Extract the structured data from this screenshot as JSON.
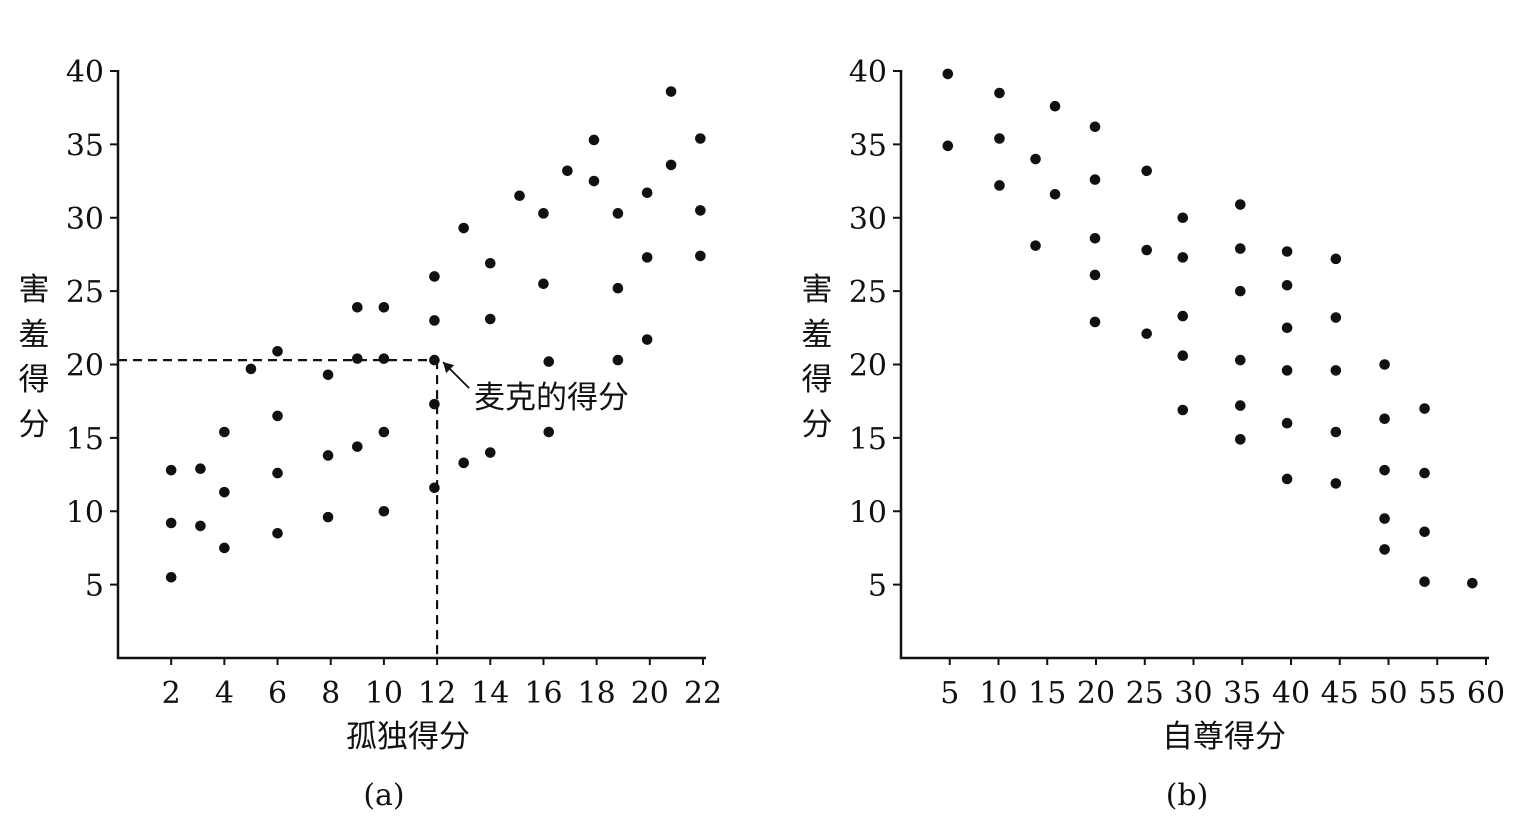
{
  "chart_data": [
    {
      "type": "scatter",
      "panel_label": "(a)",
      "xlabel": "孤独得分",
      "ylabel": "害羞得分",
      "x_ticks": [
        2,
        4,
        6,
        8,
        10,
        12,
        14,
        16,
        18,
        20,
        22
      ],
      "y_ticks": [
        5,
        10,
        15,
        20,
        25,
        30,
        35,
        40
      ],
      "xlim": [
        0,
        22
      ],
      "ylim": [
        0,
        40
      ],
      "grid": false,
      "annotation": {
        "text": "麦克的得分",
        "x": 12,
        "y": 20.3
      },
      "points": [
        {
          "x": 2,
          "y": 12.8
        },
        {
          "x": 2,
          "y": 9.2
        },
        {
          "x": 2,
          "y": 5.5
        },
        {
          "x": 3.1,
          "y": 12.9
        },
        {
          "x": 3.1,
          "y": 9.0
        },
        {
          "x": 4,
          "y": 15.4
        },
        {
          "x": 4,
          "y": 11.3
        },
        {
          "x": 4,
          "y": 7.5
        },
        {
          "x": 5,
          "y": 19.7
        },
        {
          "x": 6,
          "y": 20.9
        },
        {
          "x": 6,
          "y": 16.5
        },
        {
          "x": 6,
          "y": 12.6
        },
        {
          "x": 6,
          "y": 8.5
        },
        {
          "x": 7.9,
          "y": 19.3
        },
        {
          "x": 7.9,
          "y": 13.8
        },
        {
          "x": 7.9,
          "y": 9.6
        },
        {
          "x": 9,
          "y": 23.9
        },
        {
          "x": 9,
          "y": 20.4
        },
        {
          "x": 9,
          "y": 14.4
        },
        {
          "x": 10,
          "y": 23.9
        },
        {
          "x": 10,
          "y": 20.4
        },
        {
          "x": 10,
          "y": 15.4
        },
        {
          "x": 10,
          "y": 10.0
        },
        {
          "x": 11.9,
          "y": 26.0
        },
        {
          "x": 11.9,
          "y": 23.0
        },
        {
          "x": 11.9,
          "y": 20.3
        },
        {
          "x": 11.9,
          "y": 17.3
        },
        {
          "x": 11.9,
          "y": 11.6
        },
        {
          "x": 13,
          "y": 29.3
        },
        {
          "x": 13,
          "y": 13.3
        },
        {
          "x": 14,
          "y": 26.9
        },
        {
          "x": 14,
          "y": 23.1
        },
        {
          "x": 14,
          "y": 14.0
        },
        {
          "x": 15.1,
          "y": 31.5
        },
        {
          "x": 16,
          "y": 30.3
        },
        {
          "x": 16,
          "y": 25.5
        },
        {
          "x": 16.2,
          "y": 20.2
        },
        {
          "x": 16.2,
          "y": 15.4
        },
        {
          "x": 16.9,
          "y": 33.2
        },
        {
          "x": 17.9,
          "y": 35.3
        },
        {
          "x": 17.9,
          "y": 32.5
        },
        {
          "x": 18.8,
          "y": 30.3
        },
        {
          "x": 18.8,
          "y": 25.2
        },
        {
          "x": 18.8,
          "y": 20.3
        },
        {
          "x": 19.9,
          "y": 31.7
        },
        {
          "x": 19.9,
          "y": 27.3
        },
        {
          "x": 19.9,
          "y": 21.7
        },
        {
          "x": 20.8,
          "y": 38.6
        },
        {
          "x": 20.8,
          "y": 33.6
        },
        {
          "x": 21.9,
          "y": 35.4
        },
        {
          "x": 21.9,
          "y": 30.5
        },
        {
          "x": 21.9,
          "y": 27.4
        }
      ]
    },
    {
      "type": "scatter",
      "panel_label": "(b)",
      "xlabel": "自尊得分",
      "ylabel": "害羞得分",
      "x_ticks": [
        5,
        10,
        15,
        20,
        25,
        30,
        35,
        40,
        45,
        50,
        55,
        60
      ],
      "y_ticks": [
        5,
        10,
        15,
        20,
        25,
        30,
        35,
        40
      ],
      "xlim": [
        0,
        60
      ],
      "ylim": [
        0,
        40
      ],
      "grid": false,
      "points": [
        {
          "x": 4.8,
          "y": 39.8
        },
        {
          "x": 4.8,
          "y": 34.9
        },
        {
          "x": 10.1,
          "y": 38.5
        },
        {
          "x": 10.1,
          "y": 35.4
        },
        {
          "x": 10.1,
          "y": 32.2
        },
        {
          "x": 13.8,
          "y": 34.0
        },
        {
          "x": 13.8,
          "y": 28.1
        },
        {
          "x": 15.8,
          "y": 37.6
        },
        {
          "x": 15.8,
          "y": 31.6
        },
        {
          "x": 19.9,
          "y": 36.2
        },
        {
          "x": 19.9,
          "y": 32.6
        },
        {
          "x": 19.9,
          "y": 28.6
        },
        {
          "x": 19.9,
          "y": 26.1
        },
        {
          "x": 19.9,
          "y": 22.9
        },
        {
          "x": 25.2,
          "y": 33.2
        },
        {
          "x": 25.2,
          "y": 27.8
        },
        {
          "x": 25.2,
          "y": 22.1
        },
        {
          "x": 28.9,
          "y": 30.0
        },
        {
          "x": 28.9,
          "y": 27.3
        },
        {
          "x": 28.9,
          "y": 23.3
        },
        {
          "x": 28.9,
          "y": 20.6
        },
        {
          "x": 28.9,
          "y": 16.9
        },
        {
          "x": 34.8,
          "y": 30.9
        },
        {
          "x": 34.8,
          "y": 27.9
        },
        {
          "x": 34.8,
          "y": 25.0
        },
        {
          "x": 34.8,
          "y": 20.3
        },
        {
          "x": 34.8,
          "y": 17.2
        },
        {
          "x": 34.8,
          "y": 14.9
        },
        {
          "x": 39.6,
          "y": 27.7
        },
        {
          "x": 39.6,
          "y": 25.4
        },
        {
          "x": 39.6,
          "y": 22.5
        },
        {
          "x": 39.6,
          "y": 19.6
        },
        {
          "x": 39.6,
          "y": 16.0
        },
        {
          "x": 39.6,
          "y": 12.2
        },
        {
          "x": 44.6,
          "y": 27.2
        },
        {
          "x": 44.6,
          "y": 23.2
        },
        {
          "x": 44.6,
          "y": 19.6
        },
        {
          "x": 44.6,
          "y": 15.4
        },
        {
          "x": 44.6,
          "y": 11.9
        },
        {
          "x": 49.6,
          "y": 20.0
        },
        {
          "x": 49.6,
          "y": 16.3
        },
        {
          "x": 49.6,
          "y": 12.8
        },
        {
          "x": 49.6,
          "y": 9.5
        },
        {
          "x": 49.6,
          "y": 7.4
        },
        {
          "x": 53.7,
          "y": 17.0
        },
        {
          "x": 53.7,
          "y": 12.6
        },
        {
          "x": 53.7,
          "y": 8.6
        },
        {
          "x": 53.7,
          "y": 5.2
        },
        {
          "x": 58.6,
          "y": 5.1
        }
      ]
    }
  ]
}
